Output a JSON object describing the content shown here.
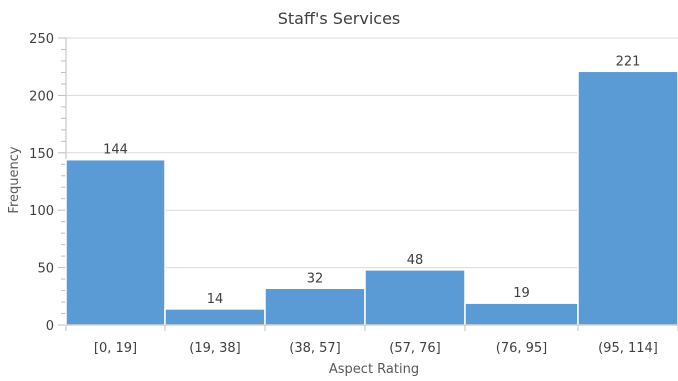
{
  "chart_data": {
    "type": "bar",
    "title": "Staff's Services",
    "xlabel": "Aspect Rating",
    "ylabel": "Frequency",
    "categories": [
      "[0, 19]",
      "(19, 38]",
      "(38, 57]",
      "(57, 76]",
      "(76, 95]",
      "(95, 114]"
    ],
    "values": [
      144,
      14,
      32,
      48,
      19,
      221
    ],
    "ylim": [
      0,
      250
    ],
    "yticks": [
      0,
      50,
      100,
      150,
      200,
      250
    ],
    "grid": true,
    "bar_color": "#5B9BD5",
    "grid_color": "#D9D9D9"
  }
}
